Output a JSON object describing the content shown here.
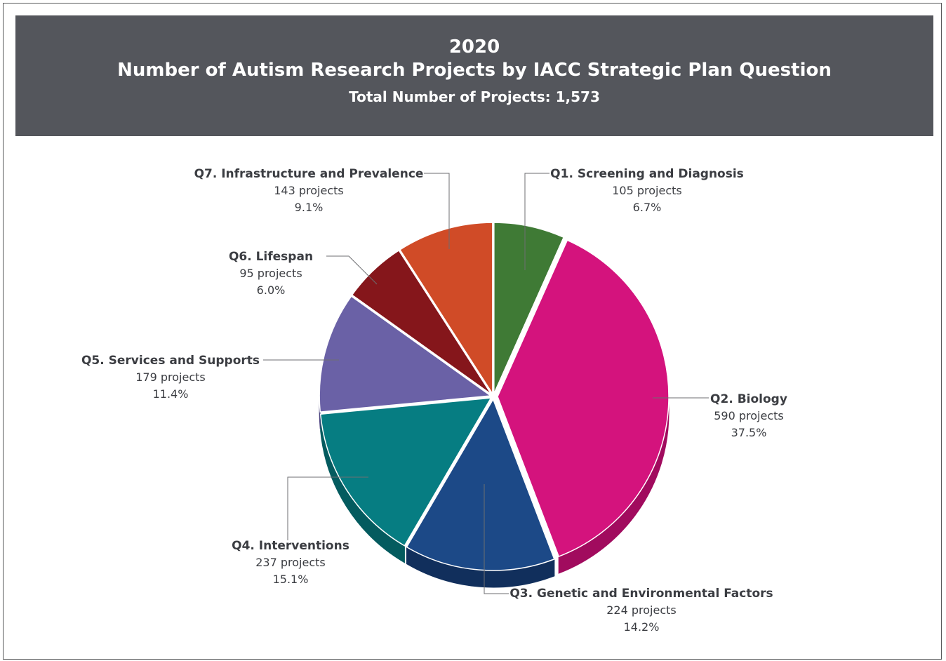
{
  "header": {
    "year": "2020",
    "title": "Number of Autism Research Projects by IACC Strategic Plan Question",
    "subtitle_prefix": "Total Number of Projects:",
    "subtitle_value": "1,573"
  },
  "chart_data": {
    "type": "pie",
    "title": "Number of Autism Research Projects by IACC Strategic Plan Question",
    "total": 1573,
    "slices": [
      {
        "label": "Q1. Screening and Diagnosis",
        "value": 105,
        "count_text": "105 projects",
        "percent_text": "6.7%",
        "color": "#3f7a35",
        "side": "#2c5a25"
      },
      {
        "label": "Q2. Biology",
        "value": 590,
        "count_text": "590 projects",
        "percent_text": "37.5%",
        "color": "#d4137d",
        "side": "#a10b5e"
      },
      {
        "label": "Q3. Genetic and Environmental Factors",
        "value": 224,
        "count_text": "224 projects",
        "percent_text": "14.2%",
        "color": "#1c4987",
        "side": "#112f5c"
      },
      {
        "label": "Q4. Interventions",
        "value": 237,
        "count_text": "237 projects",
        "percent_text": "15.1%",
        "color": "#067d82",
        "side": "#045b5f"
      },
      {
        "label": "Q5. Services and Supports",
        "value": 179,
        "count_text": "179 projects",
        "percent_text": "11.4%",
        "color": "#6a61a6",
        "side": "#4c4480"
      },
      {
        "label": "Q6. Lifespan",
        "value": 95,
        "count_text": "95 projects",
        "percent_text": "6.0%",
        "color": "#85161b",
        "side": "#5d0e12"
      },
      {
        "label": "Q7. Infrastructure and Prevalence",
        "value": 143,
        "count_text": "143 projects",
        "percent_text": "9.1%",
        "color": "#d04b27",
        "side": "#9c361b"
      }
    ]
  }
}
